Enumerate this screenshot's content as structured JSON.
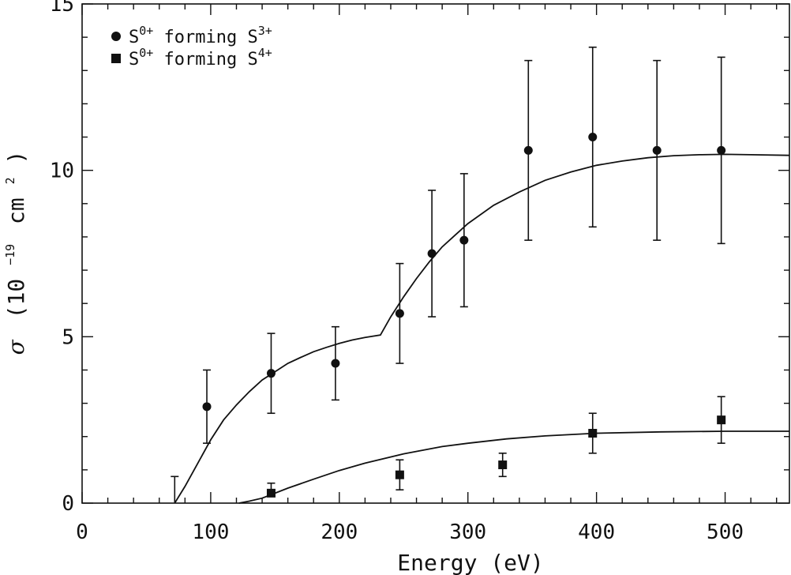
{
  "chart_data": {
    "type": "scatter",
    "title": "",
    "xlabel": "Energy (eV)",
    "ylabel": {
      "symbol": "σ",
      "open": "(10",
      "exp": "−19",
      "unit": "cm",
      "unit_exp": "2",
      "close": ")"
    },
    "xlim": [
      0,
      550
    ],
    "ylim": [
      0,
      15
    ],
    "xticks": [
      0,
      100,
      200,
      300,
      400,
      500
    ],
    "yticks": [
      0,
      5,
      10,
      15
    ],
    "legend_position": "top-left",
    "series": [
      {
        "name": "S0+ forming S3+",
        "marker": "circle",
        "legend": {
          "base": "S",
          "sup1": "0+",
          "mid": " forming S",
          "sup2": "3+"
        },
        "points": [
          {
            "x": 97,
            "y": 2.9,
            "err_low": 1.1,
            "err_high": 1.1
          },
          {
            "x": 147,
            "y": 3.9,
            "err_low": 1.2,
            "err_high": 1.2
          },
          {
            "x": 197,
            "y": 4.2,
            "err_low": 1.1,
            "err_high": 1.1
          },
          {
            "x": 247,
            "y": 5.7,
            "err_low": 1.5,
            "err_high": 1.5
          },
          {
            "x": 272,
            "y": 7.5,
            "err_low": 1.9,
            "err_high": 1.9
          },
          {
            "x": 297,
            "y": 7.9,
            "err_low": 2.0,
            "err_high": 2.0
          },
          {
            "x": 347,
            "y": 10.6,
            "err_low": 2.7,
            "err_high": 2.7
          },
          {
            "x": 397,
            "y": 11.0,
            "err_low": 2.7,
            "err_high": 2.7
          },
          {
            "x": 447,
            "y": 10.6,
            "err_low": 2.7,
            "err_high": 2.7
          },
          {
            "x": 497,
            "y": 10.6,
            "err_low": 2.8,
            "err_high": 2.8
          }
        ],
        "fit_curve": {
          "x": [
            72,
            80,
            90,
            100,
            110,
            120,
            130,
            140,
            150,
            160,
            170,
            180,
            190,
            200,
            210,
            220,
            232,
            240,
            250,
            260,
            270,
            280,
            290,
            300,
            320,
            340,
            360,
            380,
            400,
            420,
            440,
            460,
            480,
            500,
            520,
            550
          ],
          "y": [
            0,
            0.5,
            1.2,
            1.9,
            2.5,
            2.95,
            3.35,
            3.7,
            3.95,
            4.2,
            4.38,
            4.55,
            4.68,
            4.8,
            4.9,
            4.98,
            5.05,
            5.6,
            6.2,
            6.75,
            7.25,
            7.7,
            8.05,
            8.4,
            8.95,
            9.35,
            9.7,
            9.95,
            10.15,
            10.28,
            10.38,
            10.44,
            10.47,
            10.48,
            10.47,
            10.45
          ]
        }
      },
      {
        "name": "S0+ forming S4+",
        "marker": "square",
        "legend": {
          "base": "S",
          "sup1": "0+",
          "mid": " forming S",
          "sup2": "4+"
        },
        "points": [
          {
            "x": 72,
            "y": 0.0,
            "err_low": 0.0,
            "err_high": 0.8
          },
          {
            "x": 147,
            "y": 0.3,
            "err_low": 0.0,
            "err_high": 0.3,
            "err_cap_low": false
          },
          {
            "x": 247,
            "y": 0.85,
            "err_low": 0.45,
            "err_high": 0.45
          },
          {
            "x": 327,
            "y": 1.15,
            "err_low": 0.35,
            "err_high": 0.35
          },
          {
            "x": 397,
            "y": 2.1,
            "err_low": 0.6,
            "err_high": 0.6
          },
          {
            "x": 497,
            "y": 2.5,
            "err_low": 0.7,
            "err_high": 0.7
          }
        ],
        "hide_marker_index": [
          0
        ],
        "fit_curve": {
          "x": [
            122,
            130,
            140,
            150,
            160,
            180,
            200,
            220,
            250,
            280,
            300,
            330,
            360,
            400,
            450,
            500,
            550
          ],
          "y": [
            0,
            0.06,
            0.15,
            0.3,
            0.45,
            0.72,
            0.98,
            1.2,
            1.48,
            1.7,
            1.8,
            1.93,
            2.02,
            2.1,
            2.14,
            2.16,
            2.16
          ]
        }
      }
    ]
  }
}
